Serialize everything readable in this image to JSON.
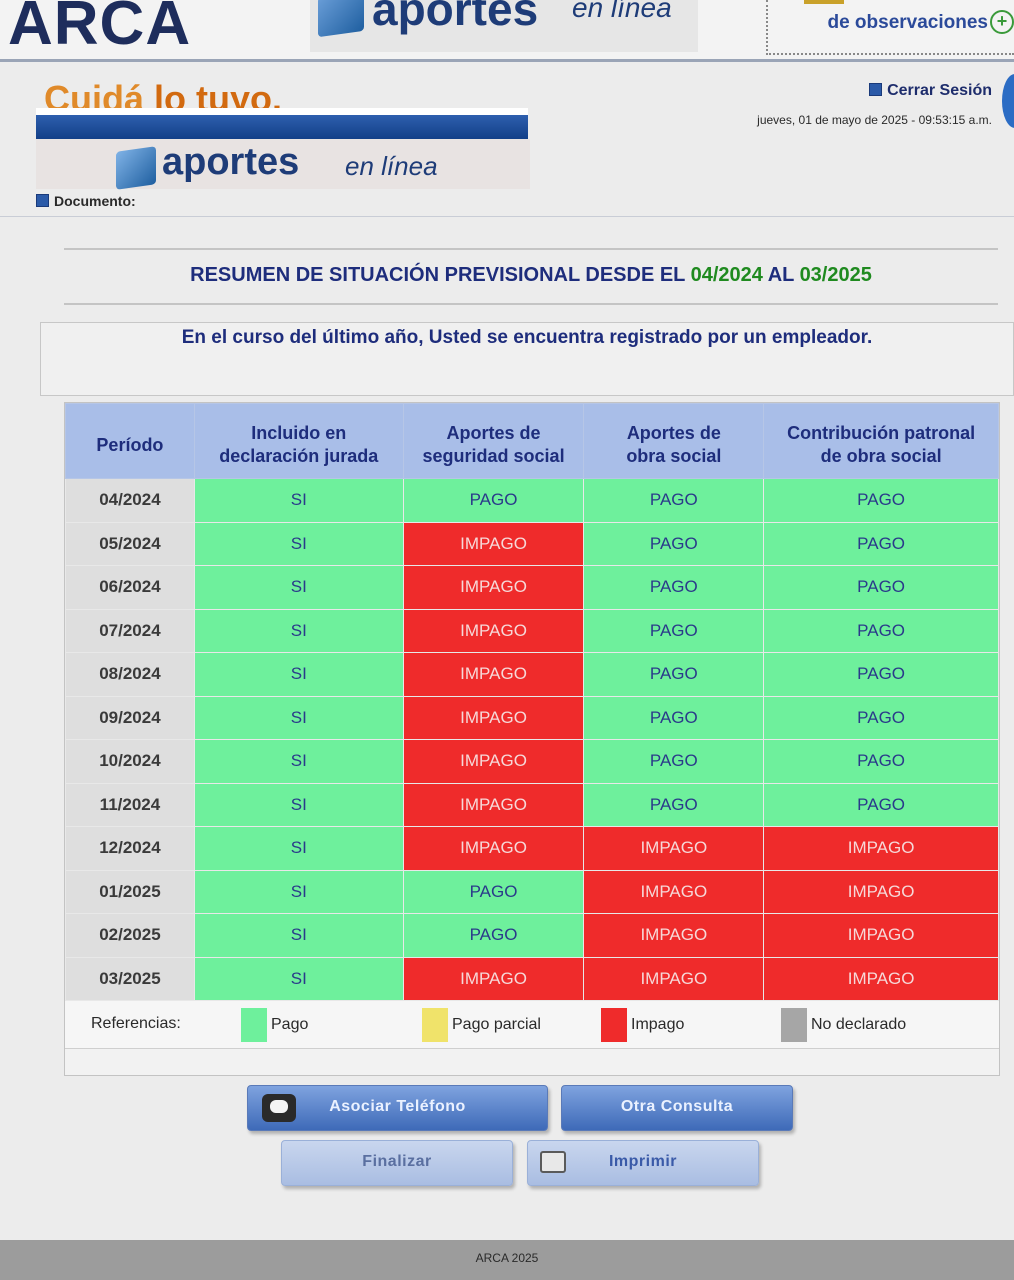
{
  "banner": {
    "org_logo": "ARCA",
    "app_word": "aportes",
    "app_small": "en línea",
    "obs_prefix": "",
    "obs_text": "de observaciones"
  },
  "header": {
    "slogan_part1": "Cuidá ",
    "slogan_part2": "lo tuyo.",
    "logo_word": "aportes",
    "logo_small": "en línea",
    "document_label": "Documento:",
    "logout_label": "Cerrar Sesión",
    "datetime": "jueves, 01 de mayo de 2025 - 09:53:15 a.m."
  },
  "summary": {
    "title_prefix": "RESUMEN DE SITUACIÓN PREVISIONAL DESDE EL ",
    "from": "04/2024",
    "middle": " AL ",
    "to": "03/2025",
    "notice": "En el curso del último año, Usted se encuentra registrado por un empleador."
  },
  "table": {
    "headers": {
      "periodo": "Período",
      "incluido_1": "Incluido en",
      "incluido_2": "declaración jurada",
      "seguridad_1": "Aportes de",
      "seguridad_2": "seguridad social",
      "obra_1": "Aportes de",
      "obra_2": "obra social",
      "patronal_1": "Contribución patronal",
      "patronal_2": "de obra social"
    },
    "rows": [
      {
        "periodo": "04/2024",
        "incluido": "SI",
        "seguridad": "PAGO",
        "obra": "PAGO",
        "patronal": "PAGO"
      },
      {
        "periodo": "05/2024",
        "incluido": "SI",
        "seguridad": "IMPAGO",
        "obra": "PAGO",
        "patronal": "PAGO"
      },
      {
        "periodo": "06/2024",
        "incluido": "SI",
        "seguridad": "IMPAGO",
        "obra": "PAGO",
        "patronal": "PAGO"
      },
      {
        "periodo": "07/2024",
        "incluido": "SI",
        "seguridad": "IMPAGO",
        "obra": "PAGO",
        "patronal": "PAGO"
      },
      {
        "periodo": "08/2024",
        "incluido": "SI",
        "seguridad": "IMPAGO",
        "obra": "PAGO",
        "patronal": "PAGO"
      },
      {
        "periodo": "09/2024",
        "incluido": "SI",
        "seguridad": "IMPAGO",
        "obra": "PAGO",
        "patronal": "PAGO"
      },
      {
        "periodo": "10/2024",
        "incluido": "SI",
        "seguridad": "IMPAGO",
        "obra": "PAGO",
        "patronal": "PAGO"
      },
      {
        "periodo": "11/2024",
        "incluido": "SI",
        "seguridad": "IMPAGO",
        "obra": "PAGO",
        "patronal": "PAGO"
      },
      {
        "periodo": "12/2024",
        "incluido": "SI",
        "seguridad": "IMPAGO",
        "obra": "IMPAGO",
        "patronal": "IMPAGO"
      },
      {
        "periodo": "01/2025",
        "incluido": "SI",
        "seguridad": "PAGO",
        "obra": "IMPAGO",
        "patronal": "IMPAGO"
      },
      {
        "periodo": "02/2025",
        "incluido": "SI",
        "seguridad": "PAGO",
        "obra": "IMPAGO",
        "patronal": "IMPAGO"
      },
      {
        "periodo": "03/2025",
        "incluido": "SI",
        "seguridad": "IMPAGO",
        "obra": "IMPAGO",
        "patronal": "IMPAGO"
      }
    ],
    "references_label": "Referencias:",
    "references": [
      {
        "label": "Pago",
        "color": "#6ef09c"
      },
      {
        "label": "Pago parcial",
        "color": "#f0e36a"
      },
      {
        "label": "Impago",
        "color": "#ef2b2b"
      },
      {
        "label": "No declarado",
        "color": "#a6a6a6"
      }
    ]
  },
  "buttons": {
    "asociar": "Asociar Teléfono",
    "otra": "Otra Consulta",
    "finalizar": "Finalizar",
    "imprimir": "Imprimir"
  },
  "footer": "ARCA 2025",
  "colors": {
    "pago": "#6ef09c",
    "impago": "#ef2b2b",
    "header": "#a9bee8",
    "brand_blue": "#1e2d7c"
  }
}
